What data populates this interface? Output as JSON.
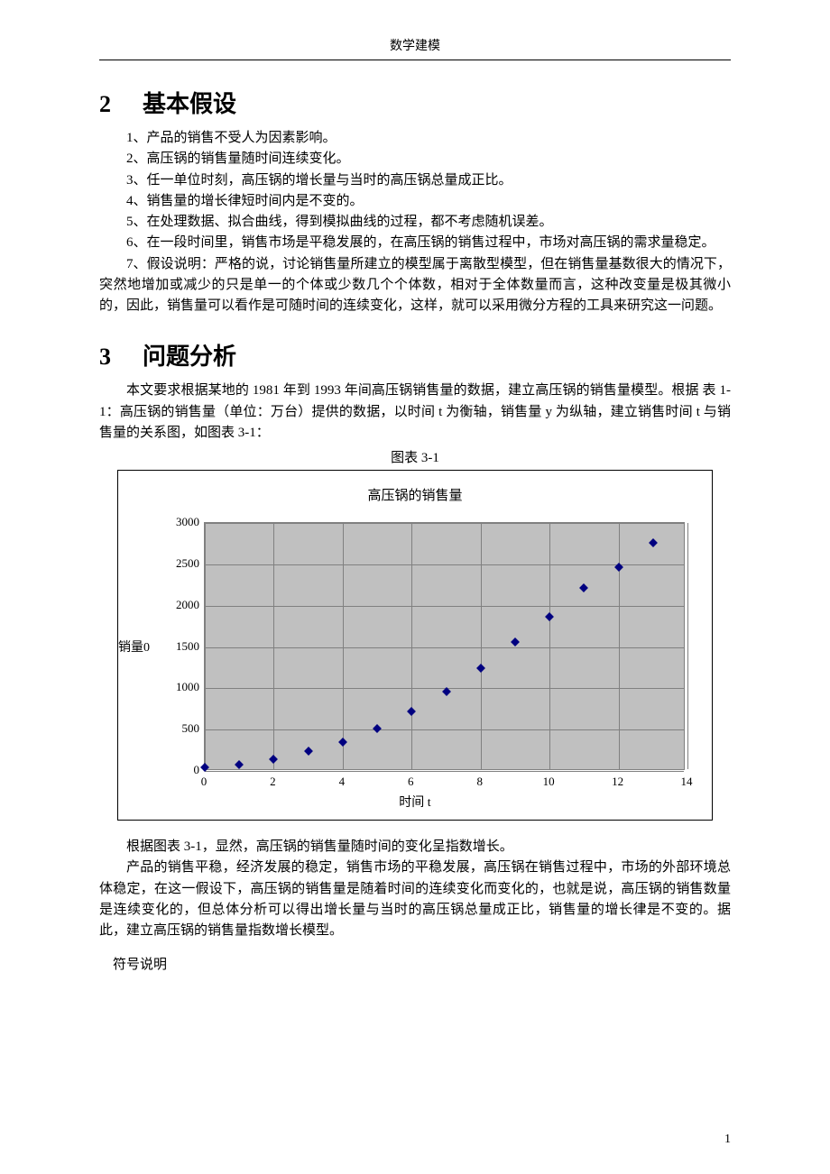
{
  "header": {
    "title": "数学建模"
  },
  "section2": {
    "number": "2",
    "title": "基本假设",
    "items": [
      "1、产品的销售不受人为因素影响。",
      "2、高压锅的销售量随时间连续变化。",
      "3、任一单位时刻，高压锅的增长量与当时的高压锅总量成正比。",
      "4、销售量的增长律短时间内是不变的。",
      "5、在处理数据、拟合曲线，得到模拟曲线的过程，都不考虑随机误差。",
      "6、在一段时间里，销售市场是平稳发展的，在高压锅的销售过程中，市场对高压锅的需求量稳定。",
      "7、假设说明：严格的说，讨论销售量所建立的模型属于离散型模型，但在销售量基数很大的情况下，突然地增加或减少的只是单一的个体或少数几个个体数，相对于全体数量而言，这种改变量是极其微小的，因此，销售量可以看作是可随时间的连续变化，这样，就可以采用微分方程的工具来研究这一问题。"
    ]
  },
  "section3": {
    "number": "3",
    "title": "问题分析",
    "para1": "本文要求根据某地的 1981 年到 1993 年间高压锅销售量的数据，建立高压锅的销售量模型。根据 表 1-1：高压锅的销售量（单位：万台）提供的数据，以时间 t 为衡轴，销售量 y 为纵轴，建立销售时间 t 与销售量的关系图，如图表 3-1：",
    "chart_caption": "图表 3-1",
    "para2": "根据图表 3-1，显然，高压锅的销售量随时间的变化呈指数增长。",
    "para3": "产品的销售平稳，经济发展的稳定，销售市场的平稳发展，高压锅在销售过程中，市场的外部环境总体稳定，在这一假设下，高压锅的销售量是随着时间的连续变化而变化的，也就是说，高压锅的销售数量是连续变化的，但总体分析可以得出增长量与当时的高压锅总量成正比，销售量的增长律是不变的。据此，建立高压锅的销售量指数增长模型。",
    "symbol_note": "符号说明"
  },
  "chart": {
    "type": "scatter",
    "title": "高压锅的销售量",
    "x_label": "时间 t",
    "y_label": "销量0",
    "xlim": [
      0,
      14
    ],
    "ylim": [
      0,
      3000
    ],
    "x_ticks": [
      0,
      2,
      4,
      6,
      8,
      10,
      12,
      14
    ],
    "y_ticks": [
      0,
      500,
      1000,
      1500,
      2000,
      2500,
      3000
    ],
    "background_color": "#c0c0c0",
    "grid_color": "#808080",
    "border_color": "#000000",
    "marker_color": "#000080",
    "marker_shape": "diamond",
    "marker_size": 7,
    "data": [
      {
        "t": 0,
        "y": 44
      },
      {
        "t": 1,
        "y": 80
      },
      {
        "t": 2,
        "y": 145
      },
      {
        "t": 3,
        "y": 238
      },
      {
        "t": 4,
        "y": 344
      },
      {
        "t": 5,
        "y": 510
      },
      {
        "t": 6,
        "y": 720
      },
      {
        "t": 7,
        "y": 960
      },
      {
        "t": 8,
        "y": 1240
      },
      {
        "t": 9,
        "y": 1560
      },
      {
        "t": 10,
        "y": 1870
      },
      {
        "t": 11,
        "y": 2210
      },
      {
        "t": 12,
        "y": 2470
      },
      {
        "t": 13,
        "y": 2760
      }
    ]
  },
  "page_number": "1"
}
